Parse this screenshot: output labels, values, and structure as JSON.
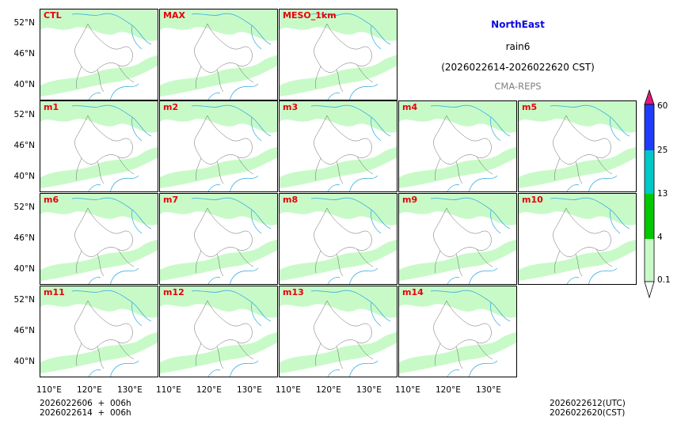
{
  "header": {
    "region": "NorthEast",
    "variable": "rain6",
    "period": "(2026022614-2026022620 CST)",
    "source": "CMA-REPS"
  },
  "panels": [
    "CTL",
    "MAX",
    "MESO_1km",
    "m1",
    "m2",
    "m3",
    "m4",
    "m5",
    "m6",
    "m7",
    "m8",
    "m9",
    "m10",
    "m11",
    "m12",
    "m13",
    "m14"
  ],
  "axes": {
    "lat_ticks": [
      "52°N",
      "46°N",
      "40°N"
    ],
    "lon_ticks": [
      "110°E",
      "120°E",
      "130°E"
    ]
  },
  "colorbar": {
    "levels": [
      "0.1",
      "4",
      "13",
      "25",
      "60"
    ],
    "colors": [
      "#c8fac8",
      "#00c800",
      "#00c8c8",
      "#1e3cff",
      "#e0187a"
    ]
  },
  "footer": {
    "init_line_1": "2026022606  +  006h",
    "init_line_2": "2026022614  +  006h",
    "time_utc": "2026022612(UTC)",
    "time_cst": "2026022620(CST)"
  },
  "colors": {
    "panel_label": "#e8000b",
    "title": "#0a0ae0",
    "river": "#2aa7e0",
    "land_rain": "#c8fac8"
  }
}
